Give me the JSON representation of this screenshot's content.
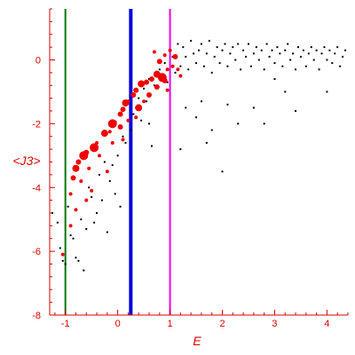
{
  "chart_data": {
    "type": "scatter",
    "xlabel": "E",
    "ylabel": "<J3>",
    "xlim": [
      -1.3,
      4.4
    ],
    "ylim": [
      -8,
      1.6
    ],
    "x_ticks": [
      -1,
      0,
      1,
      2,
      3,
      4
    ],
    "y_ticks": [
      0,
      -2,
      -4,
      -6,
      -8
    ],
    "grid": false,
    "legend": "none",
    "colors": {
      "axis": "#dd0000",
      "text": "#dd0000",
      "points_small": "#000000",
      "points_large": "#ee0000",
      "line_green": "#007700",
      "line_blue": "#0000dd",
      "line_magenta": "#ee00ee"
    },
    "vertical_lines": [
      {
        "x": -1.0,
        "color": "#007700",
        "width": 2
      },
      {
        "x": 0.25,
        "color": "#0000dd",
        "width": 4
      },
      {
        "x": 1.0,
        "color": "#ee00ee",
        "width": 2
      }
    ],
    "series": [
      {
        "marker": "small-black",
        "points": [
          [
            -1.25,
            -4.8
          ],
          [
            -1.15,
            -5.1
          ],
          [
            -1.1,
            -5.9
          ],
          [
            -1.05,
            -6.3
          ],
          [
            -1.0,
            -6.4
          ],
          [
            -0.95,
            -4.6
          ],
          [
            -0.9,
            -5.5
          ],
          [
            -0.85,
            -5.6
          ],
          [
            -0.8,
            -6.2
          ],
          [
            -0.75,
            -6.3
          ],
          [
            -0.7,
            -5.0
          ],
          [
            -0.65,
            -6.6
          ],
          [
            -0.6,
            -5.3
          ],
          [
            -0.55,
            -4.0
          ],
          [
            -0.5,
            -4.3
          ],
          [
            -0.45,
            -5.1
          ],
          [
            -0.4,
            -4.8
          ],
          [
            -0.35,
            -3.6
          ],
          [
            -0.3,
            -4.4
          ],
          [
            -0.25,
            -3.2
          ],
          [
            -0.2,
            -5.4
          ],
          [
            -0.15,
            -3.8
          ],
          [
            -0.1,
            -3.3
          ],
          [
            -0.05,
            -4.2
          ],
          [
            0.0,
            -3.0
          ],
          [
            0.05,
            -4.6
          ],
          [
            0.1,
            -2.4
          ],
          [
            0.15,
            -2.6
          ],
          [
            0.2,
            -1.9
          ],
          [
            0.25,
            -2.2
          ],
          [
            0.3,
            -1.7
          ],
          [
            0.35,
            -1.5
          ],
          [
            0.4,
            -1.2
          ],
          [
            0.45,
            -1.9
          ],
          [
            0.5,
            -0.9
          ],
          [
            0.55,
            -1.3
          ],
          [
            0.6,
            -0.6
          ],
          [
            0.65,
            -2.7
          ],
          [
            0.7,
            -0.8
          ],
          [
            0.75,
            -0.4
          ],
          [
            0.8,
            -0.3
          ],
          [
            0.85,
            -0.6
          ],
          [
            0.9,
            -0.1
          ],
          [
            0.95,
            -0.7
          ],
          [
            1.0,
            0.3
          ],
          [
            1.05,
            0.1
          ],
          [
            1.1,
            -0.4
          ],
          [
            1.15,
            0.5
          ],
          [
            1.2,
            -0.2
          ],
          [
            1.25,
            0.4
          ],
          [
            1.3,
            0.1
          ],
          [
            1.35,
            -0.3
          ],
          [
            1.4,
            0.6
          ],
          [
            1.45,
            0.2
          ],
          [
            1.5,
            -0.1
          ],
          [
            1.55,
            0.3
          ],
          [
            1.6,
            0.5
          ],
          [
            1.65,
            -0.2
          ],
          [
            1.7,
            0.2
          ],
          [
            1.75,
            0.6
          ],
          [
            1.8,
            -0.4
          ],
          [
            1.85,
            0.1
          ],
          [
            1.9,
            0.4
          ],
          [
            1.95,
            -0.1
          ],
          [
            2.0,
            0.3
          ],
          [
            2.05,
            0.5
          ],
          [
            2.1,
            -0.2
          ],
          [
            2.15,
            0.2
          ],
          [
            2.2,
            0.4
          ],
          [
            2.25,
            0.0
          ],
          [
            2.3,
            0.5
          ],
          [
            2.35,
            -0.3
          ],
          [
            2.4,
            0.3
          ],
          [
            2.45,
            0.1
          ],
          [
            2.5,
            0.5
          ],
          [
            2.55,
            -0.2
          ],
          [
            2.6,
            0.2
          ],
          [
            2.65,
            0.4
          ],
          [
            2.7,
            0.0
          ],
          [
            2.75,
            0.3
          ],
          [
            2.8,
            -0.3
          ],
          [
            2.85,
            0.5
          ],
          [
            2.9,
            0.1
          ],
          [
            2.95,
            0.3
          ],
          [
            3.0,
            -0.1
          ],
          [
            3.05,
            0.4
          ],
          [
            3.1,
            0.2
          ],
          [
            3.15,
            -0.2
          ],
          [
            3.2,
            0.3
          ],
          [
            3.25,
            0.5
          ],
          [
            3.3,
            0.0
          ],
          [
            3.35,
            0.2
          ],
          [
            3.4,
            -0.3
          ],
          [
            3.45,
            0.4
          ],
          [
            3.5,
            0.1
          ],
          [
            3.55,
            0.3
          ],
          [
            3.6,
            -0.2
          ],
          [
            3.65,
            0.2
          ],
          [
            3.7,
            0.4
          ],
          [
            3.75,
            0.0
          ],
          [
            3.8,
            0.3
          ],
          [
            3.85,
            -0.3
          ],
          [
            3.9,
            0.2
          ],
          [
            3.95,
            0.4
          ],
          [
            4.0,
            0.0
          ],
          [
            4.05,
            0.3
          ],
          [
            4.1,
            -0.1
          ],
          [
            4.15,
            0.2
          ],
          [
            4.2,
            0.4
          ],
          [
            4.25,
            -0.2
          ],
          [
            4.3,
            0.1
          ],
          [
            4.35,
            0.3
          ],
          [
            1.3,
            -1.5
          ],
          [
            1.5,
            -1.8
          ],
          [
            1.8,
            -2.2
          ],
          [
            2.3,
            -2.0
          ],
          [
            2.0,
            -3.5
          ],
          [
            2.6,
            -1.5
          ],
          [
            3.2,
            -1.0
          ],
          [
            3.4,
            -1.6
          ],
          [
            1.2,
            -2.8
          ],
          [
            1.7,
            -2.6
          ],
          [
            2.8,
            -2.0
          ],
          [
            4.0,
            -1.0
          ],
          [
            1.6,
            -1.3
          ],
          [
            2.1,
            -1.4
          ],
          [
            3.0,
            -0.6
          ],
          [
            0.6,
            -2.0
          ]
        ]
      },
      {
        "marker": "large-red",
        "points": [
          [
            -0.9,
            -4.2
          ],
          [
            -0.85,
            -3.7
          ],
          [
            -0.8,
            -3.4
          ],
          [
            -0.75,
            -3.2
          ],
          [
            -0.65,
            -3.0
          ],
          [
            -0.6,
            -2.9
          ],
          [
            -0.45,
            -2.75
          ],
          [
            -0.4,
            -2.6
          ],
          [
            -0.25,
            -2.3
          ],
          [
            -0.15,
            -2.25
          ],
          [
            -0.1,
            -2.0
          ],
          [
            -0.05,
            -1.95
          ],
          [
            0.05,
            -1.7
          ],
          [
            0.1,
            -1.55
          ],
          [
            0.15,
            -1.35
          ],
          [
            0.2,
            -1.3
          ],
          [
            0.3,
            -1.1
          ],
          [
            0.35,
            -0.95
          ],
          [
            0.45,
            -0.75
          ],
          [
            0.55,
            -0.7
          ],
          [
            0.65,
            -0.6
          ],
          [
            0.75,
            -0.45
          ],
          [
            0.85,
            -0.55
          ],
          [
            0.9,
            -0.65
          ],
          [
            0.95,
            -0.3
          ],
          [
            1.05,
            -0.2
          ],
          [
            0.8,
            -0.05
          ],
          [
            0.9,
            0.15
          ],
          [
            0.7,
            0.25
          ],
          [
            1.0,
            0.3
          ],
          [
            1.1,
            0.1
          ],
          [
            1.15,
            -0.3
          ],
          [
            0.6,
            -1.1
          ],
          [
            0.4,
            -1.5
          ],
          [
            0.2,
            -1.9
          ],
          [
            0.05,
            -2.1
          ],
          [
            -0.1,
            -2.6
          ],
          [
            -0.35,
            -3.0
          ],
          [
            -0.55,
            -3.4
          ],
          [
            -0.7,
            -3.8
          ],
          [
            -0.8,
            -4.7
          ],
          [
            -0.9,
            -5.2
          ],
          [
            -1.05,
            -6.1
          ],
          [
            0.35,
            -1.8
          ],
          [
            0.75,
            -0.85
          ],
          [
            0.5,
            -1.3
          ],
          [
            0.95,
            -0.95
          ],
          [
            1.2,
            -0.5
          ],
          [
            -0.5,
            -4.1
          ],
          [
            -0.2,
            -3.5
          ],
          [
            0.1,
            -2.5
          ],
          [
            -0.6,
            -4.4
          ]
        ],
        "sizes": [
          2,
          3,
          4,
          3,
          5,
          3,
          5,
          2,
          4,
          2,
          5,
          2,
          3,
          3,
          4,
          2,
          3,
          3,
          4,
          3,
          3,
          4,
          5,
          3,
          2,
          2,
          3,
          2,
          2,
          2,
          3,
          2,
          3,
          4,
          2,
          3,
          2,
          2,
          2,
          2,
          2,
          2,
          2,
          2,
          3,
          2,
          2,
          2,
          2,
          2,
          2,
          2
        ]
      }
    ]
  }
}
